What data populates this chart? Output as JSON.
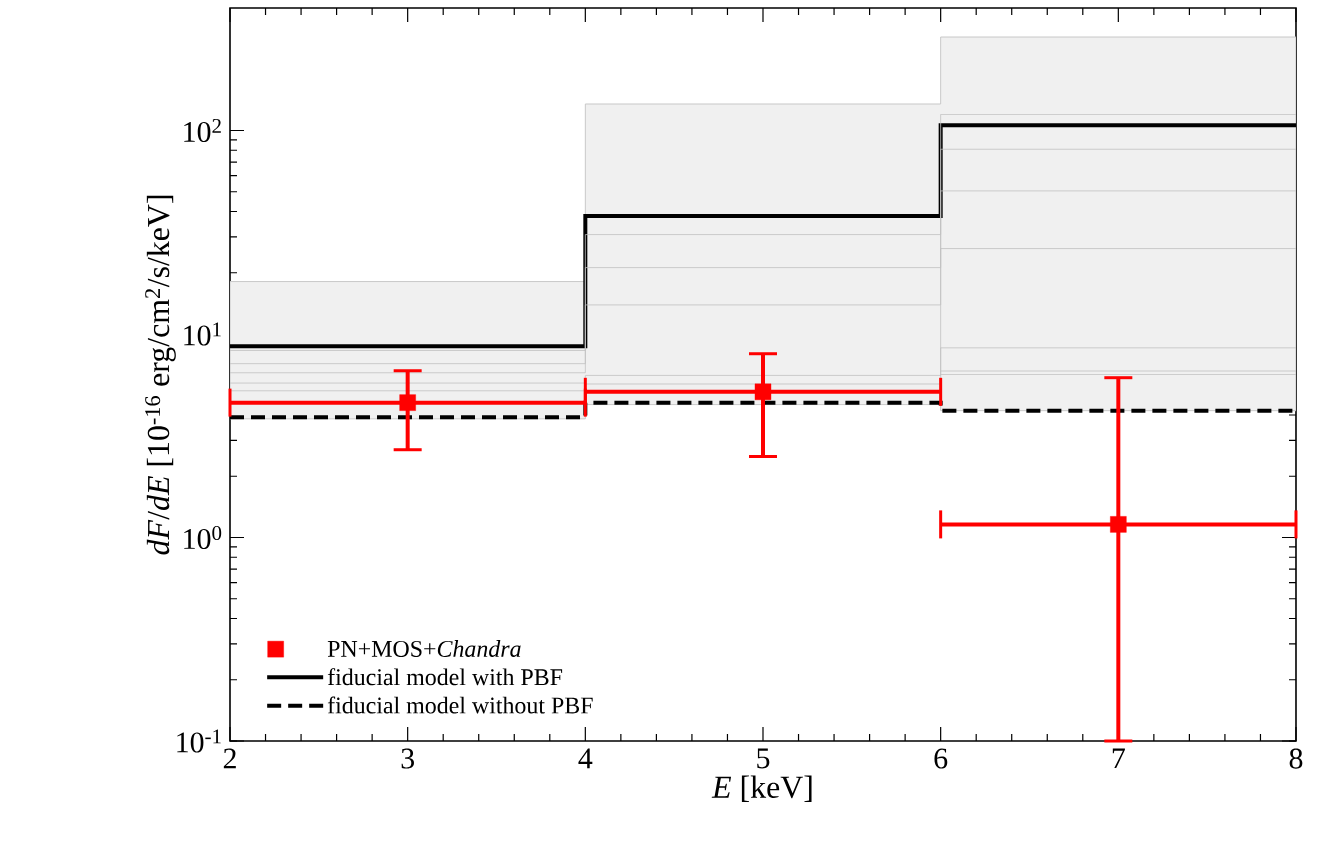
{
  "chart_data": {
    "type": "step",
    "xlabel": "*E* [keV]",
    "ylabel": "*dF*/*dE* [10$^{-16}$ erg/cm$^{2}$/s/keV]",
    "log": "y",
    "xlim": [
      2,
      8
    ],
    "ylim": [
      0.1,
      400
    ],
    "xticks": [
      2,
      3,
      4,
      5,
      6,
      7,
      8
    ],
    "yticks": [
      {
        "value": 0.1,
        "label": "10$^{-1}$"
      },
      {
        "value": 1,
        "label": "10$^{0}$"
      },
      {
        "value": 10,
        "label": "10$^{1}$"
      },
      {
        "value": 100,
        "label": "10$^{2}$"
      }
    ],
    "legend": "bottom left",
    "series": [
      {
        "name": "PN+MOS+*Chandra*",
        "type": "scatter",
        "color": "#ff0000",
        "marker": "square",
        "x": [
          3,
          5,
          7
        ],
        "values": [
          4.6,
          5.2,
          1.16
        ],
        "errors": [
          [
            2.7,
            6.6
          ],
          [
            2.5,
            8.0
          ],
          [
            0.1,
            6.1
          ]
        ],
        "xerrors": [
          1,
          1,
          1
        ]
      },
      {
        "name": "fiducial model with PBF",
        "color": "#000000",
        "line_style": "solid",
        "x": [
          2,
          4,
          6,
          8
        ],
        "values": [
          8.7,
          38,
          106,
          106
        ],
        "lower": [
          3.83,
          4.5,
          4.2,
          4.2
        ],
        "upper": [
          18.1,
          135,
          288,
          288
        ]
      },
      {
        "name": "fiducial model without PBF",
        "color": "#000000",
        "line_style": "dashed",
        "x": [
          2,
          4,
          6,
          8
        ],
        "values": [
          3.9,
          4.6,
          4.2,
          4.2
        ]
      },
      {
        "color": "#c0c0c0",
        "x": [
          2,
          4,
          6,
          8
        ],
        "values": [
          8.3,
          30.8,
          120,
          120
        ]
      },
      {
        "color": "#c0c0c0",
        "x": [
          2,
          4,
          6,
          8
        ],
        "values": [
          7.15,
          21.2,
          80.9,
          80.9
        ]
      },
      {
        "color": "#c0c0c0",
        "x": [
          2,
          4,
          6,
          8
        ],
        "values": [
          6.45,
          13.9,
          50.5,
          50.5
        ]
      },
      {
        "color": "#c0c0c0",
        "x": [
          2,
          4,
          6,
          8
        ],
        "values": [
          5.74,
          6.26,
          26.3,
          26.3
        ]
      },
      {
        "color": "#c0c0c0",
        "x": [
          2,
          4,
          6,
          8
        ],
        "values": [
          5.26,
          5.68,
          8.55,
          8.55
        ]
      },
      {
        "color": "#c0c0c0",
        "x": [
          6,
          8
        ],
        "values": [
          6.58,
          6.58
        ]
      },
      {
        "color": "#c0c0c0",
        "x": [
          6,
          8
        ],
        "values": [
          6.33,
          6.33
        ]
      }
    ]
  }
}
